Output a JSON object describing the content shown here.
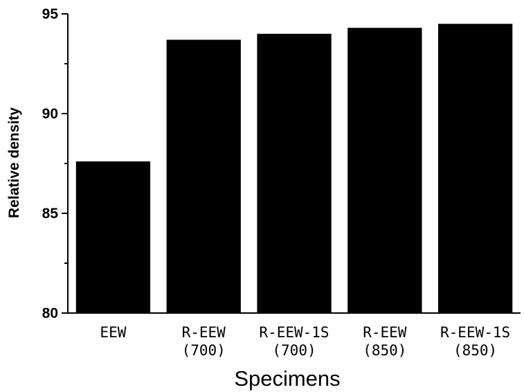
{
  "chart_data": {
    "type": "bar",
    "title": "",
    "xlabel": "Specimens",
    "ylabel": "Relative density",
    "ylim": [
      80,
      95
    ],
    "yticks": [
      80,
      85,
      90,
      95
    ],
    "categories": [
      [
        "EEW"
      ],
      [
        "R-EEW",
        "(700)"
      ],
      [
        "R-EEW-1S",
        "(700)"
      ],
      [
        "R-EEW",
        "(850)"
      ],
      [
        "R-EEW-1S",
        "(850)"
      ]
    ],
    "values": [
      87.6,
      93.7,
      94.0,
      94.3,
      94.5
    ],
    "bar_color": "#000000",
    "grid": false,
    "legend": "none"
  }
}
